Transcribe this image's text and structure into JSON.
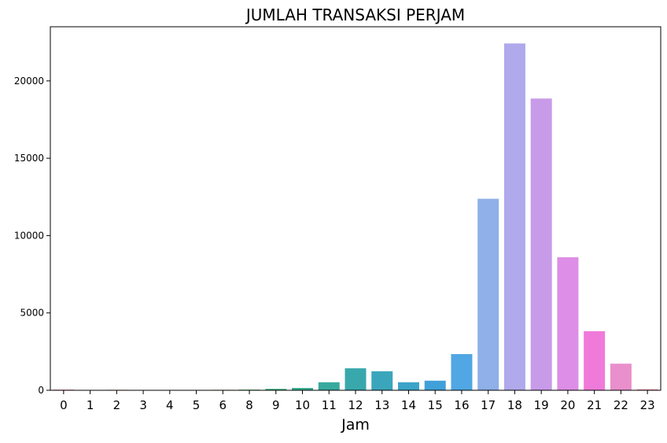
{
  "chart_data": {
    "type": "bar",
    "title": "JUMLAH TRANSAKSI PERJAM",
    "xlabel": "Jam",
    "ylabel": "",
    "categories": [
      "0",
      "1",
      "2",
      "3",
      "4",
      "5",
      "6",
      "8",
      "9",
      "10",
      "11",
      "12",
      "13",
      "14",
      "15",
      "16",
      "17",
      "18",
      "19",
      "20",
      "21",
      "22",
      "23"
    ],
    "values": [
      40,
      10,
      30,
      10,
      10,
      10,
      30,
      40,
      90,
      150,
      520,
      1420,
      1230,
      520,
      620,
      2340,
      12380,
      22420,
      18860,
      8600,
      3820,
      1720,
      60
    ],
    "bar_colors": [
      "#f77189",
      "#f47a57",
      "#e58a32",
      "#c39a32",
      "#ae9d31",
      "#97a431",
      "#77ab31",
      "#33b03e",
      "#35ae79",
      "#36ac8d",
      "#38aa9d",
      "#39a8ac",
      "#3ba6bb",
      "#3da3c9",
      "#41a0d9",
      "#50a7e3",
      "#8fb0e8",
      "#b0a9eb",
      "#c89be9",
      "#dd8ee6",
      "#f07ada",
      "#e98fcc",
      "#f282a0"
    ],
    "yticks": [
      0,
      5000,
      10000,
      15000,
      20000
    ],
    "ylim": [
      0,
      23500
    ],
    "grid": false,
    "legend": "none"
  }
}
